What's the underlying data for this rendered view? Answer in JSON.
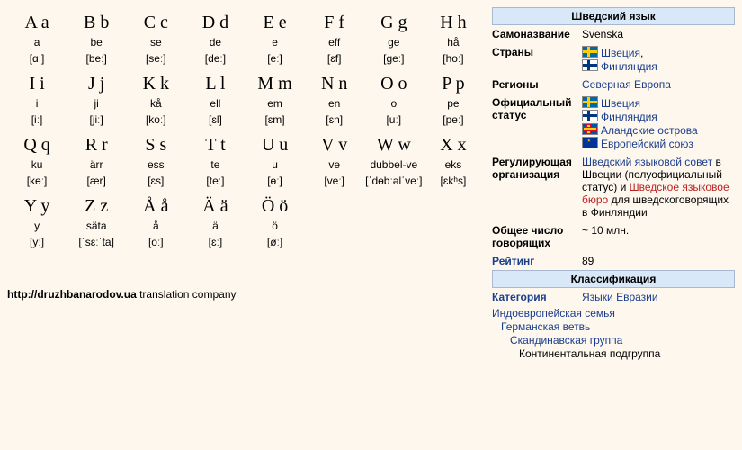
{
  "alphabet": [
    {
      "big": "A a",
      "name": "a",
      "ipa": "[ɑː]"
    },
    {
      "big": "B b",
      "name": "be",
      "ipa": "[beː]"
    },
    {
      "big": "C c",
      "name": "se",
      "ipa": "[seː]"
    },
    {
      "big": "D d",
      "name": "de",
      "ipa": "[deː]"
    },
    {
      "big": "E e",
      "name": "e",
      "ipa": "[eː]"
    },
    {
      "big": "F f",
      "name": "eff",
      "ipa": "[ɛf]"
    },
    {
      "big": "G g",
      "name": "ge",
      "ipa": "[geː]"
    },
    {
      "big": "H h",
      "name": "hå",
      "ipa": "[hoː]"
    },
    {
      "big": "I i",
      "name": "i",
      "ipa": "[iː]"
    },
    {
      "big": "J j",
      "name": "ji",
      "ipa": "[jiː]"
    },
    {
      "big": "K k",
      "name": "kå",
      "ipa": "[koː]"
    },
    {
      "big": "L l",
      "name": "ell",
      "ipa": "[ɛl]"
    },
    {
      "big": "M m",
      "name": "em",
      "ipa": "[ɛm]"
    },
    {
      "big": "N n",
      "name": "en",
      "ipa": "[ɛn]"
    },
    {
      "big": "O o",
      "name": "o",
      "ipa": "[uː]"
    },
    {
      "big": "P p",
      "name": "pe",
      "ipa": "[peː]"
    },
    {
      "big": "Q q",
      "name": "ku",
      "ipa": "[kɵː]"
    },
    {
      "big": "R r",
      "name": "ärr",
      "ipa": "[ær]"
    },
    {
      "big": "S s",
      "name": "ess",
      "ipa": "[ɛs]"
    },
    {
      "big": "T t",
      "name": "te",
      "ipa": "[teː]"
    },
    {
      "big": "U u",
      "name": "u",
      "ipa": "[ɵː]"
    },
    {
      "big": "V v",
      "name": "ve",
      "ipa": "[veː]"
    },
    {
      "big": "W w",
      "name": "dubbel-ve",
      "ipa": "[ˈdɵbːəlˈveː]"
    },
    {
      "big": "X x",
      "name": "eks",
      "ipa": "[ɛkʰs]"
    },
    {
      "big": "Y y",
      "name": "y",
      "ipa": "[yː]"
    },
    {
      "big": "Z z",
      "name": "säta",
      "ipa": "[ˈsɛːˈta]"
    },
    {
      "big": "Å å",
      "name": "å",
      "ipa": "[oː]"
    },
    {
      "big": "Ä ä",
      "name": "ä",
      "ipa": "[ɛː]"
    },
    {
      "big": "Ö ö",
      "name": "ö",
      "ipa": "[øː]"
    }
  ],
  "footer": {
    "url": "http://druzhbanarodov.ua",
    "suffix": " translation company"
  },
  "info": {
    "header": "Шведский язык",
    "selfname_k": "Самоназвание",
    "selfname_v": "Svenska",
    "countries_k": "Страны",
    "country_se": "Швеция",
    "country_se_comma": ",",
    "country_fi": "Финляндия",
    "regions_k": "Регионы",
    "regions_v": "Северная Европа",
    "official_k": "Официальный статус",
    "off_se": "Швеция",
    "off_fi": "Финляндия",
    "off_ax": "Аландские острова",
    "off_eu": "Европейский союз",
    "regul_k": "Регулирующая организация",
    "regul_1": "Шведский языковой совет",
    "regul_2": " в Швеции (полуофициальный статус) и ",
    "regul_3": "Шведское языковое бюро",
    "regul_4": " для шведскоговорящих в Финляндии",
    "total_k": "Общее число говорящих",
    "total_v": "~ 10 млн.",
    "rank_k": "Рейтинг",
    "rank_v": "89",
    "class_hdr": "Классификация",
    "cat_k": "Категория",
    "cat_v": "Языки Евразии",
    "tax1": "Индоевропейская семья",
    "tax2": "Германская ветвь",
    "tax3": "Скандинавская группа",
    "tax4": "Континентальная подгруппа"
  }
}
